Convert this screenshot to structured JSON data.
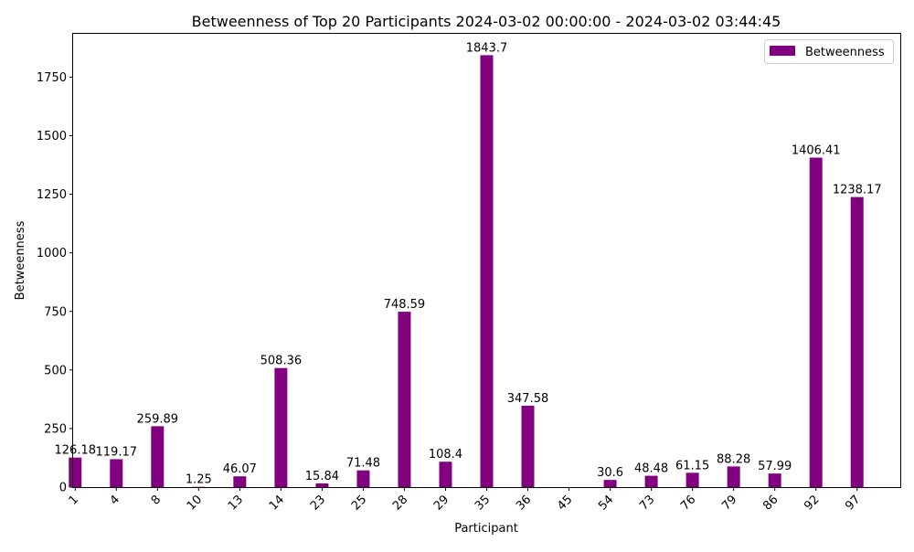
{
  "chart_data": {
    "type": "bar",
    "title": "Betweenness of Top 20 Participants 2024-03-02 00:00:00 - 2024-03-02 03:44:45",
    "xlabel": "Participant",
    "ylabel": "Betweenness",
    "ylim": [
      0,
      1935
    ],
    "yticks": [
      0,
      250,
      500,
      750,
      1000,
      1250,
      1500,
      1750
    ],
    "grid": false,
    "legend": {
      "placement": "top-right",
      "entries": [
        "Betweenness"
      ]
    },
    "categories": [
      "1",
      "4",
      "8",
      "10",
      "13",
      "14",
      "23",
      "25",
      "28",
      "29",
      "35",
      "36",
      "45",
      "54",
      "73",
      "76",
      "79",
      "86",
      "92",
      "97"
    ],
    "series": [
      {
        "name": "Betweenness",
        "color": "#800080",
        "values": [
          126.18,
          119.17,
          259.89,
          1.25,
          46.07,
          508.36,
          15.84,
          71.48,
          748.59,
          108.4,
          1843.7,
          347.58,
          0,
          30.6,
          48.48,
          61.15,
          88.28,
          57.99,
          1406.41,
          1238.17
        ],
        "labels": [
          "126.18",
          "119.17",
          "259.89",
          "1.25",
          "46.07",
          "508.36",
          "15.84",
          "71.48",
          "748.59",
          "108.4",
          "1843.7",
          "347.58",
          "",
          "30.6",
          "48.48",
          "61.15",
          "88.28",
          "57.99",
          "1406.41",
          "1238.17"
        ]
      }
    ]
  }
}
